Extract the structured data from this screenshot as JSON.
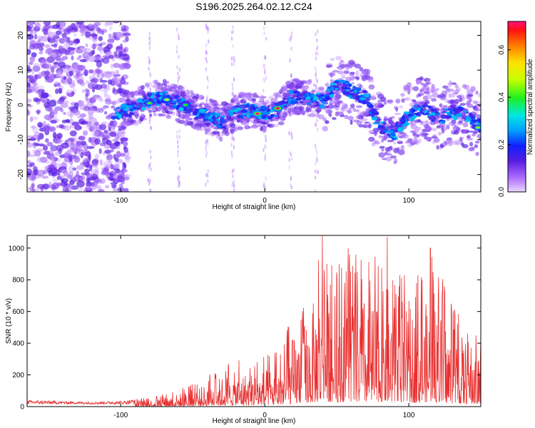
{
  "title": "S196.2025.264.02.12.C24",
  "chart_data": [
    {
      "type": "heatmap",
      "name": "spectrogram",
      "xlabel": "Height of straight line (km)",
      "ylabel": "Frequency (Hz)",
      "xlim": [
        -165,
        150
      ],
      "ylim": [
        -25,
        24
      ],
      "x_ticks": [
        -100,
        0,
        100
      ],
      "x_tick_labels": [
        "-100",
        "0",
        "100"
      ],
      "y_ticks": [
        20,
        10,
        0,
        -10,
        -20
      ],
      "y_tick_labels": [
        "20",
        "10",
        "0",
        "-10",
        "-20"
      ],
      "colorbar": {
        "label": "Normalized spectral amplitude",
        "range": [
          0,
          0.72
        ],
        "ticks": [
          0.0,
          0.2,
          0.4,
          0.6
        ],
        "tick_labels": [
          "0.0",
          "0.2",
          "0.4",
          "0.6"
        ]
      },
      "ridge": [
        {
          "x": -100,
          "f": -2
        },
        {
          "x": -90,
          "f": -1
        },
        {
          "x": -80,
          "f": 1.5
        },
        {
          "x": -70,
          "f": 2
        },
        {
          "x": -60,
          "f": 0.5
        },
        {
          "x": -50,
          "f": -1.5
        },
        {
          "x": -40,
          "f": -3
        },
        {
          "x": -30,
          "f": -5
        },
        {
          "x": -20,
          "f": -2
        },
        {
          "x": -10,
          "f": -1.5
        },
        {
          "x": 0,
          "f": -2.5
        },
        {
          "x": 10,
          "f": -1
        },
        {
          "x": 20,
          "f": 2.5
        },
        {
          "x": 30,
          "f": 2
        },
        {
          "x": 40,
          "f": 1
        },
        {
          "x": 50,
          "f": 6
        },
        {
          "x": 60,
          "f": 4
        },
        {
          "x": 70,
          "f": 2
        },
        {
          "x": 80,
          "f": -6
        },
        {
          "x": 90,
          "f": -8
        },
        {
          "x": 100,
          "f": -3
        },
        {
          "x": 110,
          "f": -1
        },
        {
          "x": 120,
          "f": -4
        },
        {
          "x": 130,
          "f": -2
        },
        {
          "x": 140,
          "f": -3
        },
        {
          "x": 150,
          "f": -6
        }
      ],
      "peaks": [
        {
          "x": -5,
          "f": -2.5,
          "amp": 0.72
        },
        {
          "x": 9,
          "f": -1,
          "amp": 0.7
        },
        {
          "x": -68,
          "f": 1.5,
          "amp": 0.5
        },
        {
          "x": -80,
          "f": 0.5,
          "amp": 0.42
        },
        {
          "x": -55,
          "f": 0,
          "amp": 0.4
        },
        {
          "x": 148,
          "f": -6.5,
          "amp": 0.45
        }
      ]
    },
    {
      "type": "line",
      "name": "snr",
      "xlabel": "Height of straight line (km)",
      "ylabel": "SNR (10 * v/v)",
      "xlim": [
        -165,
        150
      ],
      "ylim": [
        0,
        1080
      ],
      "x_ticks": [
        -100,
        0,
        100
      ],
      "x_tick_labels": [
        "-100",
        "0",
        "100"
      ],
      "y_ticks": [
        0,
        200,
        400,
        600,
        800,
        1000
      ],
      "y_tick_labels": [
        "0",
        "200",
        "400",
        "600",
        "800",
        "1000"
      ],
      "series_color": "#e83030",
      "envelope": [
        {
          "x": -165,
          "v": 40
        },
        {
          "x": -120,
          "v": 30
        },
        {
          "x": -100,
          "v": 35
        },
        {
          "x": -80,
          "v": 60
        },
        {
          "x": -60,
          "v": 110
        },
        {
          "x": -40,
          "v": 190
        },
        {
          "x": -30,
          "v": 260
        },
        {
          "x": -20,
          "v": 300
        },
        {
          "x": -10,
          "v": 300
        },
        {
          "x": 0,
          "v": 320
        },
        {
          "x": 10,
          "v": 360
        },
        {
          "x": 20,
          "v": 620
        },
        {
          "x": 30,
          "v": 800
        },
        {
          "x": 40,
          "v": 1080
        },
        {
          "x": 50,
          "v": 900
        },
        {
          "x": 60,
          "v": 1000
        },
        {
          "x": 70,
          "v": 950
        },
        {
          "x": 80,
          "v": 950
        },
        {
          "x": 85,
          "v": 1070
        },
        {
          "x": 90,
          "v": 900
        },
        {
          "x": 100,
          "v": 850
        },
        {
          "x": 110,
          "v": 830
        },
        {
          "x": 115,
          "v": 1000
        },
        {
          "x": 120,
          "v": 900
        },
        {
          "x": 130,
          "v": 650
        },
        {
          "x": 140,
          "v": 600
        },
        {
          "x": 150,
          "v": 500
        }
      ],
      "annotated_peaks": [
        {
          "x": 40,
          "v": 1080
        },
        {
          "x": 85,
          "v": 1070
        },
        {
          "x": 115,
          "v": 1000
        },
        {
          "x": 58,
          "v": 1000
        }
      ]
    }
  ]
}
